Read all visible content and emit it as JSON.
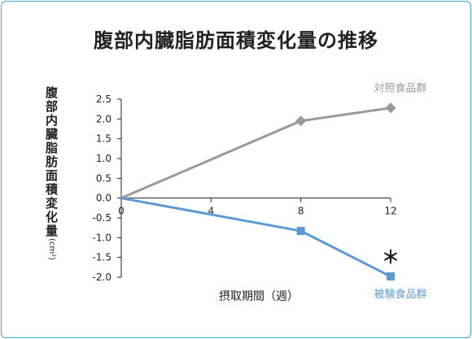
{
  "chart_data": {
    "type": "line",
    "title": "腹部内臓脂肪面積変化量の推移",
    "ylabel": "腹部内臓脂肪面積変化量",
    "yunit": "(cm²)",
    "xlabel": "摂取期間（週）",
    "x": [
      0,
      8,
      12
    ],
    "xticks": [
      "0",
      "4",
      "8",
      "12"
    ],
    "xlim": [
      0,
      12
    ],
    "yticks": [
      "2.5",
      "2.0",
      "1.5",
      "1.0",
      "0.5",
      "0.0",
      "-0.5",
      "-1.0",
      "-1.5",
      "-2.0"
    ],
    "ylim": [
      -2.0,
      2.5
    ],
    "grid": false,
    "series": [
      {
        "name": "対照食品群",
        "values": [
          0,
          1.95,
          2.28
        ],
        "color": "#999999",
        "marker": "diamond"
      },
      {
        "name": "被験食品群",
        "values": [
          0,
          -0.83,
          -1.98
        ],
        "color": "#5b9bd5",
        "marker": "square"
      }
    ],
    "annotations": [
      {
        "text": "＊",
        "x": 12,
        "y": -1.98
      }
    ]
  }
}
